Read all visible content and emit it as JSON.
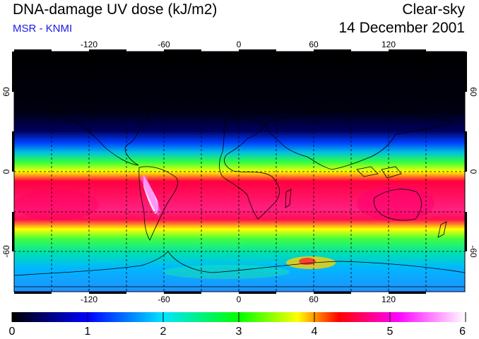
{
  "header": {
    "title": "DNA-damage UV dose (kJ/m2)",
    "source": "MSR - KNMI",
    "sky_condition": "Clear-sky",
    "date": "14 December 2001"
  },
  "map": {
    "lon_ticks": [
      "-120",
      "-60",
      "0",
      "60",
      "120"
    ],
    "lat_ticks": [
      "60",
      "0",
      "-60"
    ],
    "lon_tick_values": [
      -120,
      -60,
      0,
      60,
      120
    ],
    "lat_tick_values": [
      60,
      0,
      -60
    ],
    "lon_range": [
      -180,
      180
    ],
    "lat_range": [
      -90,
      90
    ],
    "grid_spacing_deg": 30
  },
  "colorbar": {
    "min": 0,
    "max": 6,
    "labels": [
      "0",
      "1",
      "2",
      "3",
      "4",
      "5",
      "6"
    ],
    "colors": [
      "#000000",
      "#0000ff",
      "#00e5ff",
      "#00ff00",
      "#ffff00",
      "#ff0000",
      "#ff00ff",
      "#ffffff"
    ]
  }
}
